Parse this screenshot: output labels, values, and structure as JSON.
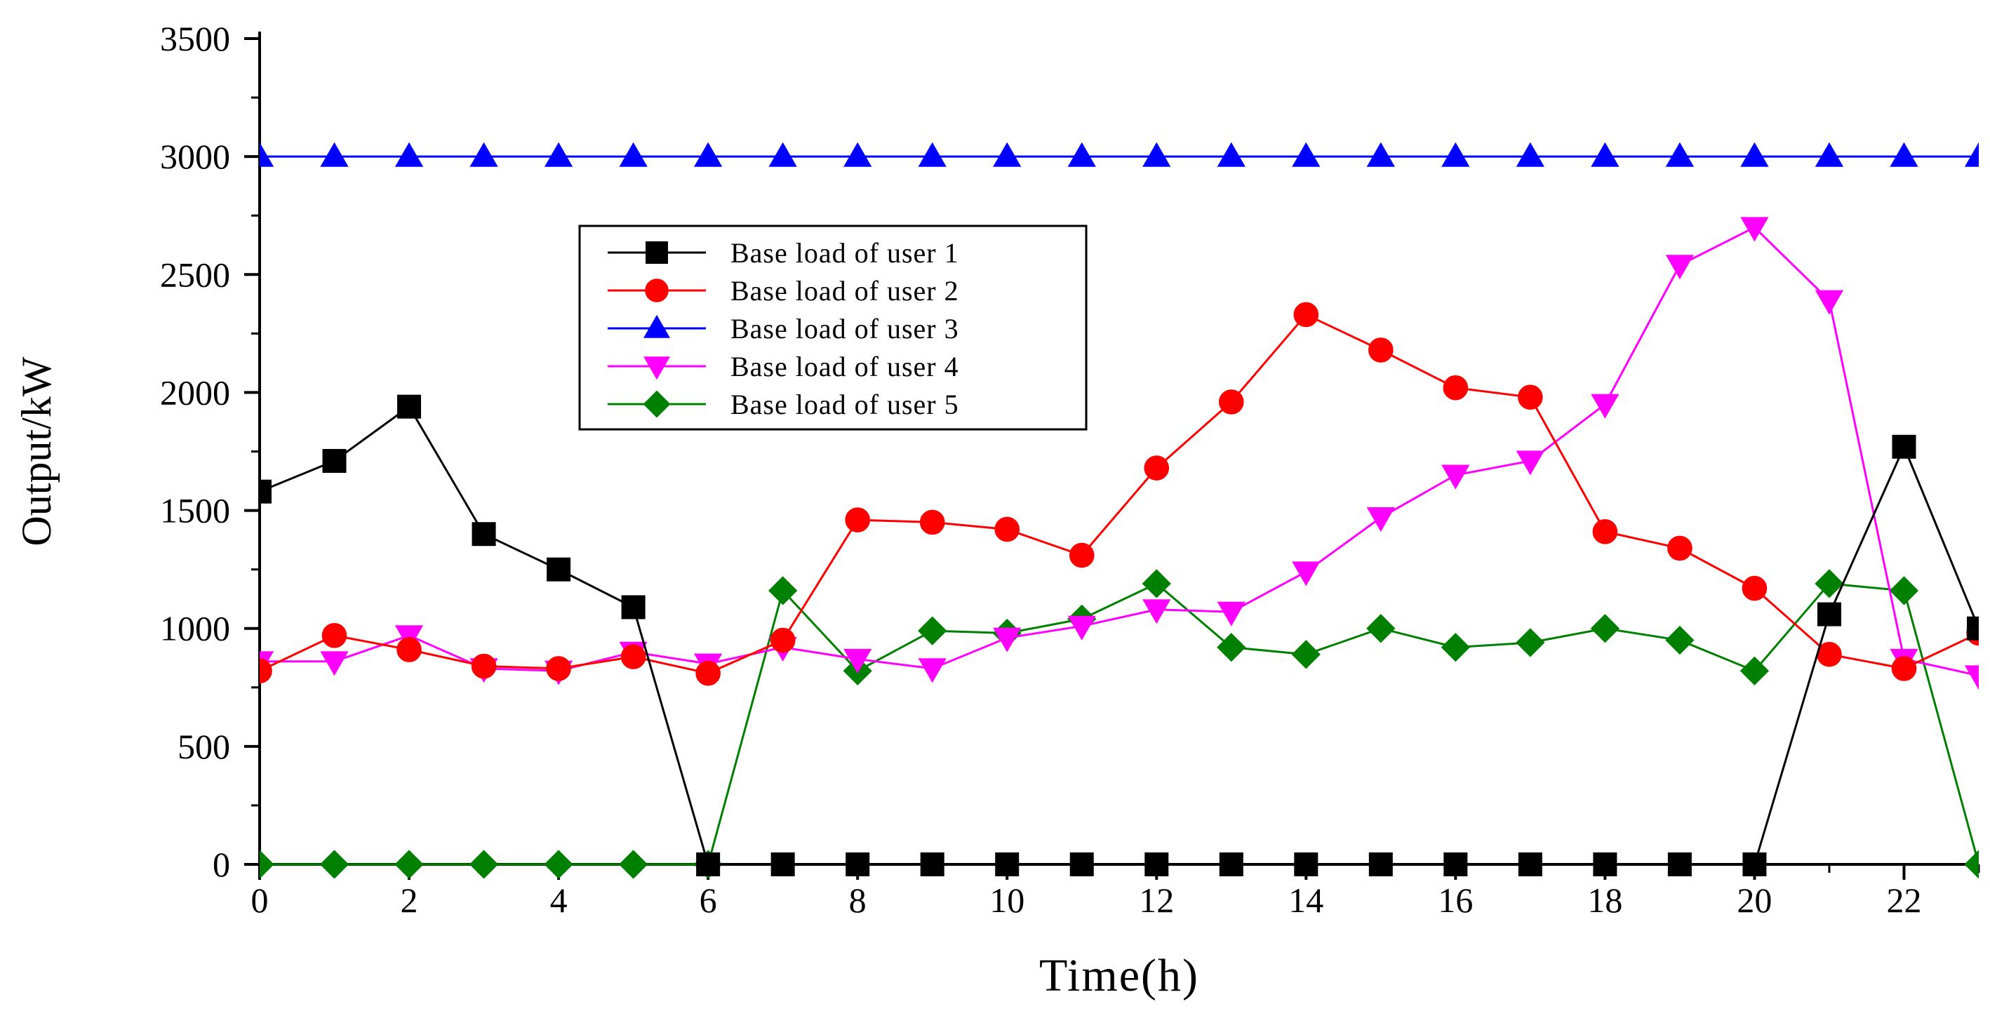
{
  "chart_data": {
    "type": "line",
    "title": "",
    "xlabel": "Time(h)",
    "ylabel": "Output/kW",
    "xlim": [
      0,
      23
    ],
    "ylim": [
      0,
      3500
    ],
    "xticks": [
      0,
      2,
      4,
      6,
      8,
      10,
      12,
      14,
      16,
      18,
      20,
      22
    ],
    "yticks": [
      0,
      500,
      1000,
      1500,
      2000,
      2500,
      3000,
      3500
    ],
    "x": [
      0,
      1,
      2,
      3,
      4,
      5,
      6,
      7,
      8,
      9,
      10,
      11,
      12,
      13,
      14,
      15,
      16,
      17,
      18,
      19,
      20,
      21,
      22,
      23
    ],
    "grid": false,
    "legend_position": "upper-center",
    "series": [
      {
        "name": "Base load of user 1",
        "color": "#000000",
        "marker": "square",
        "values": [
          1580,
          1710,
          1940,
          1400,
          1250,
          1090,
          0,
          0,
          0,
          0,
          0,
          0,
          0,
          0,
          0,
          0,
          0,
          0,
          0,
          0,
          0,
          1060,
          1770,
          1000
        ]
      },
      {
        "name": "Base load of user 2",
        "color": "#ff0000",
        "marker": "circle",
        "values": [
          820,
          970,
          910,
          840,
          830,
          880,
          810,
          950,
          1460,
          1450,
          1420,
          1310,
          1680,
          1960,
          2330,
          2180,
          2020,
          1980,
          1410,
          1340,
          1170,
          890,
          830,
          980
        ]
      },
      {
        "name": "Base load of user 3",
        "color": "#0000ff",
        "marker": "triangle-up",
        "values": [
          3000,
          3000,
          3000,
          3000,
          3000,
          3000,
          3000,
          3000,
          3000,
          3000,
          3000,
          3000,
          3000,
          3000,
          3000,
          3000,
          3000,
          3000,
          3000,
          3000,
          3000,
          3000,
          3000,
          3000
        ]
      },
      {
        "name": "Base load of user 4",
        "color": "#ff00ff",
        "marker": "triangle-down",
        "values": [
          860,
          860,
          970,
          830,
          820,
          900,
          850,
          920,
          870,
          830,
          960,
          1010,
          1080,
          1070,
          1240,
          1470,
          1650,
          1710,
          1950,
          2540,
          2700,
          2390,
          870,
          800
        ]
      },
      {
        "name": "Base load of user 5",
        "color": "#008000",
        "marker": "diamond",
        "values": [
          0,
          0,
          0,
          0,
          0,
          0,
          0,
          1160,
          820,
          990,
          980,
          1040,
          1190,
          920,
          890,
          1000,
          920,
          940,
          1000,
          950,
          820,
          1190,
          1160,
          0
        ]
      }
    ]
  }
}
